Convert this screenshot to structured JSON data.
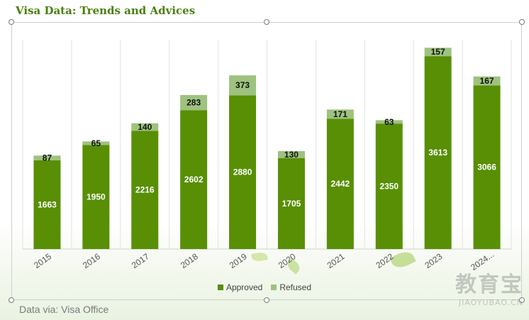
{
  "title": "Visa Data: Trends and Advices",
  "footer": "Data via: Visa Office",
  "watermark": {
    "cn": "教育宝",
    "en": "JIAOYUBAO.CN"
  },
  "colors": {
    "approved": "#588f05",
    "refused": "#9ec27f",
    "title": "#4a7f0e"
  },
  "chart_data": {
    "type": "bar",
    "stacked": true,
    "categories": [
      "2015",
      "2016",
      "2017",
      "2018",
      "2019",
      "2020",
      "2021",
      "2022",
      "2023",
      "2024..."
    ],
    "series": [
      {
        "name": "Approved",
        "values": [
          1663,
          1950,
          2216,
          2602,
          2880,
          1705,
          2442,
          2350,
          3613,
          3066
        ]
      },
      {
        "name": "Refused",
        "values": [
          87,
          65,
          140,
          283,
          373,
          130,
          171,
          63,
          157,
          167
        ]
      }
    ],
    "title": "",
    "xlabel": "",
    "ylabel": "",
    "ylim": [
      0,
      4000
    ],
    "grid": "vertical",
    "legend": "bottom"
  }
}
